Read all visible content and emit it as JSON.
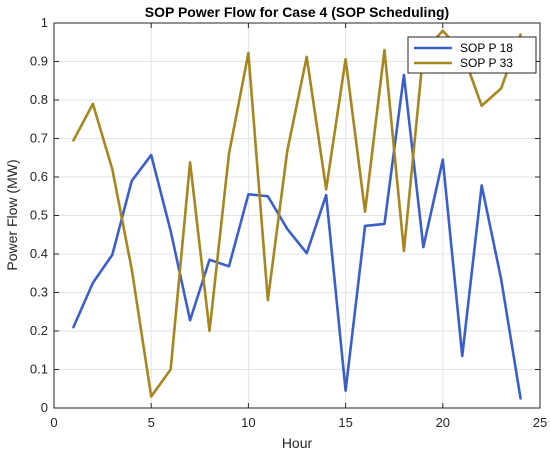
{
  "chart_data": {
    "type": "line",
    "title": "SOP Power Flow for Case 4 (SOP Scheduling)",
    "xlabel": "Hour",
    "ylabel": "Power Flow (MW)",
    "xlim": [
      0,
      25
    ],
    "ylim": [
      0,
      1
    ],
    "xticks": [
      0,
      5,
      10,
      15,
      20,
      25
    ],
    "yticks": [
      0,
      0.1,
      0.2,
      0.3,
      0.4,
      0.5,
      0.6,
      0.7,
      0.8,
      0.9,
      1
    ],
    "grid": true,
    "legend_position": "top-right",
    "x": [
      1,
      2,
      3,
      4,
      5,
      6,
      7,
      8,
      9,
      10,
      11,
      12,
      13,
      14,
      15,
      16,
      17,
      18,
      19,
      20,
      21,
      22,
      23,
      24
    ],
    "series": [
      {
        "name": "SOP P 18",
        "color": "#3a5fcd",
        "values": [
          0.21,
          0.325,
          0.398,
          0.59,
          0.657,
          0.46,
          0.228,
          0.385,
          0.368,
          0.555,
          0.55,
          0.465,
          0.402,
          0.553,
          0.045,
          0.473,
          0.478,
          0.865,
          0.418,
          0.645,
          0.135,
          0.578,
          0.335,
          0.025
        ]
      },
      {
        "name": "SOP P 33",
        "color": "#a6861e",
        "values": [
          0.695,
          0.79,
          0.62,
          0.36,
          0.03,
          0.1,
          0.638,
          0.2,
          0.66,
          0.922,
          0.28,
          0.668,
          0.912,
          0.568,
          0.906,
          0.51,
          0.93,
          0.408,
          0.925,
          0.98,
          0.925,
          0.785,
          0.83,
          0.97
        ]
      }
    ]
  }
}
